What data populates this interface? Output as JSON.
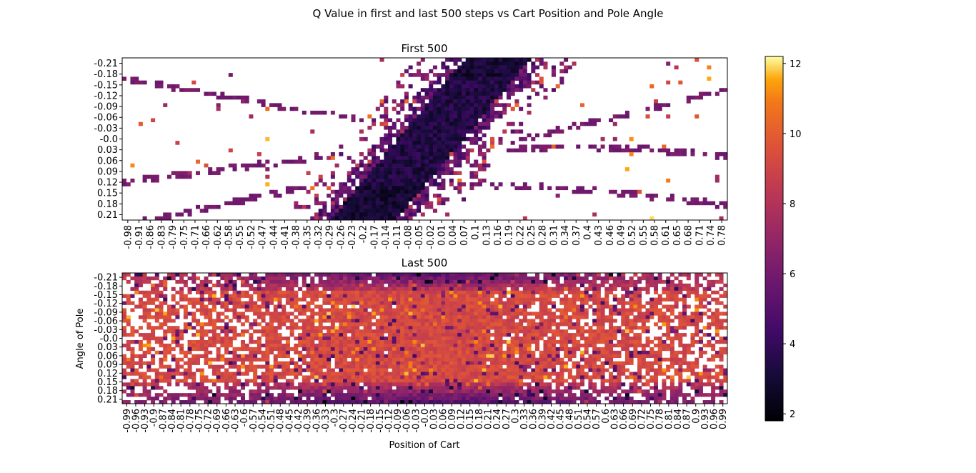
{
  "suptitle": "Q Value in first and last 500 steps vs Cart Position and Pole Angle",
  "chart_data": [
    {
      "type": "heatmap",
      "title": "First 500",
      "xlabel": "",
      "ylabel": "",
      "x_tick_labels": [
        "-0.98",
        "-0.91",
        "-0.86",
        "-0.83",
        "-0.79",
        "-0.75",
        "-0.71",
        "-0.66",
        "-0.62",
        "-0.58",
        "-0.55",
        "-0.52",
        "-0.47",
        "-0.44",
        "-0.41",
        "-0.38",
        "-0.35",
        "-0.32",
        "-0.29",
        "-0.26",
        "-0.23",
        "-0.2",
        "-0.17",
        "-0.14",
        "-0.11",
        "-0.08",
        "-0.05",
        "-0.02",
        "0.01",
        "0.04",
        "0.07",
        "0.1",
        "0.13",
        "0.16",
        "0.19",
        "0.22",
        "0.25",
        "0.28",
        "0.31",
        "0.34",
        "0.37",
        "0.4",
        "0.43",
        "0.46",
        "0.49",
        "0.52",
        "0.55",
        "0.58",
        "0.61",
        "0.65",
        "0.68",
        "0.71",
        "0.74",
        "0.78"
      ],
      "y_tick_labels": [
        "-0.21",
        "-0.18",
        "-0.15",
        "-0.12",
        "-0.09",
        "-0.06",
        "-0.03",
        "-0.0",
        "0.03",
        "0.06",
        "0.09",
        "0.12",
        "0.15",
        "0.18",
        "0.21"
      ],
      "color_range": [
        1.8,
        12.2
      ],
      "colormap": "inferno",
      "background": "#ffffff",
      "pattern": "sparse: dense low-value (purple/black) diagonal band from bottom-left of center to top-right of center; thin purple curved arcs; scattered orange/yellow cells"
    },
    {
      "type": "heatmap",
      "title": "Last 500",
      "xlabel": "Position of Cart",
      "ylabel": "Angle of Pole",
      "x_tick_labels": [
        "-0.99",
        "-0.96",
        "-0.93",
        "-0.9",
        "-0.87",
        "-0.84",
        "-0.81",
        "-0.78",
        "-0.75",
        "-0.72",
        "-0.69",
        "-0.66",
        "-0.63",
        "-0.6",
        "-0.57",
        "-0.54",
        "-0.51",
        "-0.48",
        "-0.45",
        "-0.42",
        "-0.39",
        "-0.36",
        "-0.33",
        "-0.3",
        "-0.27",
        "-0.24",
        "-0.21",
        "-0.18",
        "-0.15",
        "-0.12",
        "-0.09",
        "-0.06",
        "-0.03",
        "-0.0",
        "0.03",
        "0.06",
        "0.09",
        "0.12",
        "0.15",
        "0.18",
        "0.21",
        "0.24",
        "0.27",
        "0.3",
        "0.33",
        "0.36",
        "0.39",
        "0.42",
        "0.45",
        "0.48",
        "0.51",
        "0.54",
        "0.57",
        "0.6",
        "0.63",
        "0.66",
        "0.69",
        "0.72",
        "0.75",
        "0.78",
        "0.81",
        "0.84",
        "0.87",
        "0.9",
        "0.93",
        "0.96",
        "0.99"
      ],
      "y_tick_labels": [
        "-0.21",
        "-0.18",
        "-0.15",
        "-0.12",
        "-0.09",
        "-0.06",
        "-0.03",
        "-0.0",
        "0.03",
        "0.06",
        "0.09",
        "0.12",
        "0.15",
        "0.18",
        "0.21"
      ],
      "color_range": [
        1.8,
        12.2
      ],
      "colormap": "inferno",
      "background": "#ffffff",
      "pattern": "dense: mostly orange values (~9-10) across the grid, darker purple near top and bottom rows around center, white gaps toward left and right edges"
    }
  ],
  "colorbar": {
    "range": [
      1.8,
      12.2
    ],
    "ticks": [
      "2",
      "4",
      "6",
      "8",
      "10",
      "12"
    ],
    "tick_values": [
      2,
      4,
      6,
      8,
      10,
      12
    ]
  }
}
